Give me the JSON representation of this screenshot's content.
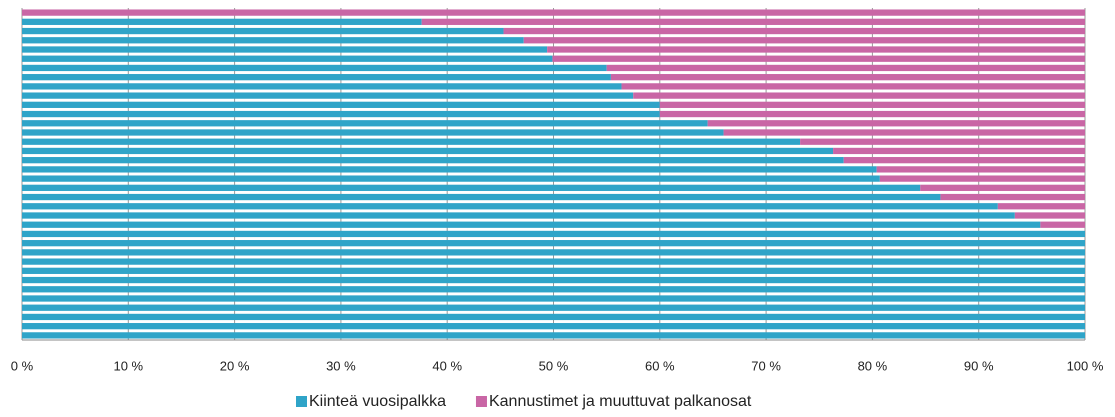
{
  "chart_data": {
    "type": "stacked_barh",
    "categories": [
      null,
      null,
      null,
      null,
      null,
      null,
      null,
      null,
      null,
      null,
      null,
      null,
      null,
      null,
      null,
      null,
      null,
      null,
      null,
      null,
      null,
      null,
      null,
      null,
      null,
      null,
      null,
      null,
      null,
      null,
      null,
      null,
      null,
      null,
      null,
      null
    ],
    "series": [
      {
        "name": "Kiinteä vuosipalkka",
        "color": "#2fa4c8",
        "values": [
          0,
          37.6,
          45.3,
          47.2,
          49.4,
          49.9,
          55.0,
          55.4,
          56.4,
          57.5,
          60.0,
          60.0,
          64.5,
          66.0,
          73.2,
          76.3,
          77.3,
          80.4,
          80.7,
          84.5,
          86.4,
          91.8,
          93.4,
          95.8,
          100,
          100,
          100,
          100,
          100,
          100,
          100,
          100,
          100,
          100,
          100,
          100
        ]
      },
      {
        "name": "Kannustimet ja muuttuvat palkanosat",
        "color": "#c966a5",
        "values": [
          100,
          62.4,
          54.7,
          52.8,
          50.6,
          50.1,
          45.0,
          44.6,
          43.6,
          42.5,
          40.0,
          40.0,
          35.5,
          34.0,
          26.8,
          23.7,
          22.7,
          19.6,
          19.3,
          15.5,
          13.6,
          8.2,
          6.6,
          4.2,
          0,
          0,
          0,
          0,
          0,
          0,
          0,
          0,
          0,
          0,
          0,
          0
        ]
      }
    ],
    "xlim": [
      0,
      100
    ],
    "xticks": [
      {
        "value": 0,
        "label": "0 %"
      },
      {
        "value": 10,
        "label": "10 %"
      },
      {
        "value": 20,
        "label": "20 %"
      },
      {
        "value": 30,
        "label": "30 %"
      },
      {
        "value": 40,
        "label": "40 %"
      },
      {
        "value": 50,
        "label": "50 %"
      },
      {
        "value": 60,
        "label": "60 %"
      },
      {
        "value": 70,
        "label": "70 %"
      },
      {
        "value": 80,
        "label": "80 %"
      },
      {
        "value": 90,
        "label": "90 %"
      },
      {
        "value": 100,
        "label": "100 %"
      }
    ],
    "grid": true,
    "legend": "bottom"
  }
}
